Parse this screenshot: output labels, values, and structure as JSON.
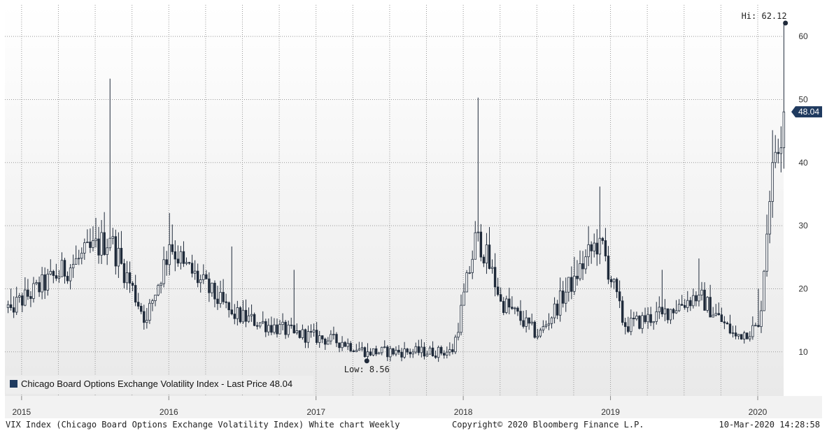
{
  "chart_data": {
    "type": "candlestick",
    "frequency": "Weekly",
    "title": "",
    "legend": "Chicago Board Options Exchange Volatility Index - Last Price 48.04",
    "legend_position": "bottom-left",
    "legend_color": "#1f3a5f",
    "ylim": [
      3,
      65
    ],
    "y_ticks": [
      10,
      20,
      30,
      40,
      50,
      60
    ],
    "y_axis_side": "right",
    "x_tick_labels": [
      "2015",
      "2016",
      "2017",
      "2018",
      "2019",
      "2020"
    ],
    "grid": true,
    "last_price": 48.04,
    "last_price_label": "48.04",
    "hi": {
      "value": 62.12,
      "label": "Hi: 62.12",
      "date": "2020-03"
    },
    "low": {
      "value": 8.56,
      "label": "Low: 8.56",
      "date": "2017-05"
    },
    "key_points": [
      {
        "date": "2014-12",
        "close": 17.0
      },
      {
        "date": "2015-08",
        "high": 53.3,
        "close": 28.0
      },
      {
        "date": "2015-09",
        "close": 24.0
      },
      {
        "date": "2015-11",
        "close": 15.0
      },
      {
        "date": "2016-01",
        "high": 32.0,
        "close": 27.0
      },
      {
        "date": "2016-02",
        "close": 24.0
      },
      {
        "date": "2016-06",
        "high": 26.7,
        "close": 16.0
      },
      {
        "date": "2016-11",
        "high": 23.0,
        "close": 13.0
      },
      {
        "date": "2017-03",
        "close": 11.5
      },
      {
        "date": "2017-05",
        "low": 8.56,
        "close": 10.0
      },
      {
        "date": "2017-12",
        "close": 10.0
      },
      {
        "date": "2018-02",
        "high": 50.3,
        "close": 29.0
      },
      {
        "date": "2018-04",
        "close": 18.0
      },
      {
        "date": "2018-07",
        "close": 12.5
      },
      {
        "date": "2018-10",
        "close": 22.0
      },
      {
        "date": "2018-12",
        "high": 36.2,
        "close": 28.0
      },
      {
        "date": "2019-02",
        "close": 14.0
      },
      {
        "date": "2019-05",
        "high": 23.0,
        "close": 16.0
      },
      {
        "date": "2019-08",
        "high": 24.8,
        "close": 19.0
      },
      {
        "date": "2019-11",
        "close": 12.5
      },
      {
        "date": "2020-01",
        "high": 20.0,
        "close": 14.0
      },
      {
        "date": "2020-02",
        "close": 40.0
      },
      {
        "date": "2020-03",
        "high": 62.12,
        "close": 48.04
      }
    ]
  },
  "footer": {
    "left": "VIX Index (Chicago Board Options Exchange Volatility Index) White chart  Weekly",
    "center": "Copyright© 2020 Bloomberg Finance L.P.",
    "right": "10-Mar-2020 14:28:58"
  },
  "colors": {
    "up_candle": "#ffffff",
    "down_candle": "#1f2a3a",
    "wick": "#1f2a3a",
    "grid": "#999999",
    "plot_bg_top": "#ffffff",
    "plot_bg_bottom": "#eaeaea",
    "last_price_bg": "#1f3a5f"
  }
}
